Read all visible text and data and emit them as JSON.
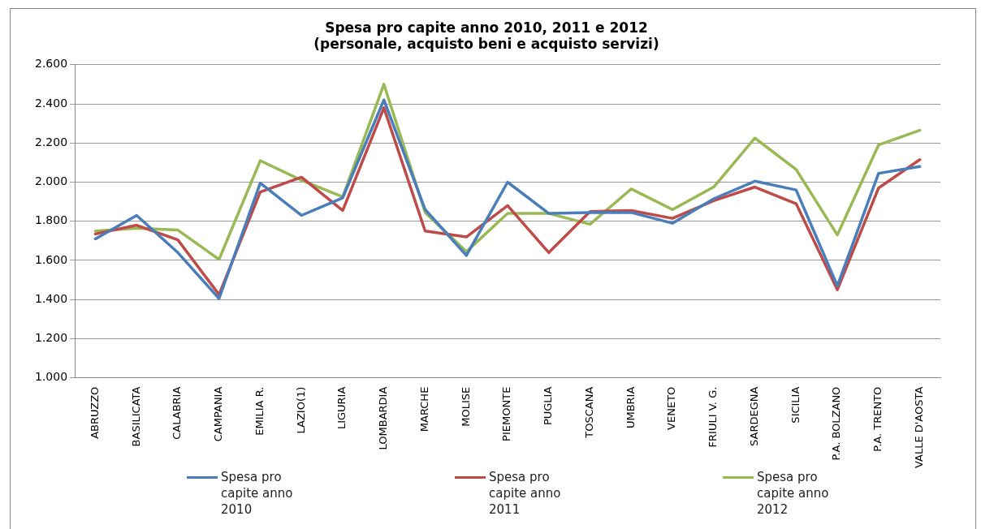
{
  "chart_data": {
    "type": "line",
    "title": "Spesa pro capite anno 2010, 2011 e 2012\n(personale, acquisto beni e acquisto servizi)",
    "categories": [
      "ABRUZZO",
      "BASILICATA",
      "CALABRIA",
      "CAMPANIA",
      "EMILIA R.",
      "LAZIO(1)",
      "LIGURIA",
      "LOMBARDIA",
      "MARCHE",
      "MOLISE",
      "PIEMONTE",
      "PUGLIA",
      "TOSCANA",
      "UMBRIA",
      "VENETO",
      "FRIULI V. G.",
      "SARDEGNA",
      "SICILIA",
      "P.A. BOLZANO",
      "P.A. TRENTO",
      "VALLE D'AOSTA"
    ],
    "series": [
      {
        "name": "Spesa pro capite anno 2010",
        "color": "#4a7ebb",
        "values": [
          1710,
          1830,
          1640,
          1405,
          1995,
          1830,
          1920,
          2420,
          1860,
          1625,
          2000,
          1840,
          1845,
          1845,
          1790,
          1915,
          2005,
          1960,
          1470,
          2045,
          2080
        ]
      },
      {
        "name": "Spesa pro capite anno 2011",
        "color": "#be4b48",
        "values": [
          1735,
          1780,
          1705,
          1425,
          1950,
          2025,
          1855,
          2380,
          1750,
          1720,
          1880,
          1640,
          1850,
          1855,
          1815,
          1905,
          1975,
          1890,
          1450,
          1970,
          2115
        ]
      },
      {
        "name": "Spesa pro capite anno 2012",
        "color": "#98b954",
        "values": [
          1750,
          1765,
          1755,
          1605,
          2110,
          2010,
          1925,
          2500,
          1845,
          1645,
          1840,
          1840,
          1785,
          1965,
          1860,
          1975,
          2225,
          2065,
          1730,
          2190,
          2265
        ]
      }
    ],
    "ylim": [
      1000,
      2600
    ],
    "yticks": [
      {
        "value": 1000,
        "label": "1.000"
      },
      {
        "value": 1200,
        "label": "1.200"
      },
      {
        "value": 1400,
        "label": "1.400"
      },
      {
        "value": 1600,
        "label": "1.600"
      },
      {
        "value": 1800,
        "label": "1.800"
      },
      {
        "value": 2000,
        "label": "2.000"
      },
      {
        "value": 2200,
        "label": "2.200"
      },
      {
        "value": 2400,
        "label": "2.400"
      },
      {
        "value": 2600,
        "label": "2.600"
      }
    ],
    "grid": "y",
    "legend": "bottom",
    "marker": "none",
    "line_style": "solid"
  }
}
